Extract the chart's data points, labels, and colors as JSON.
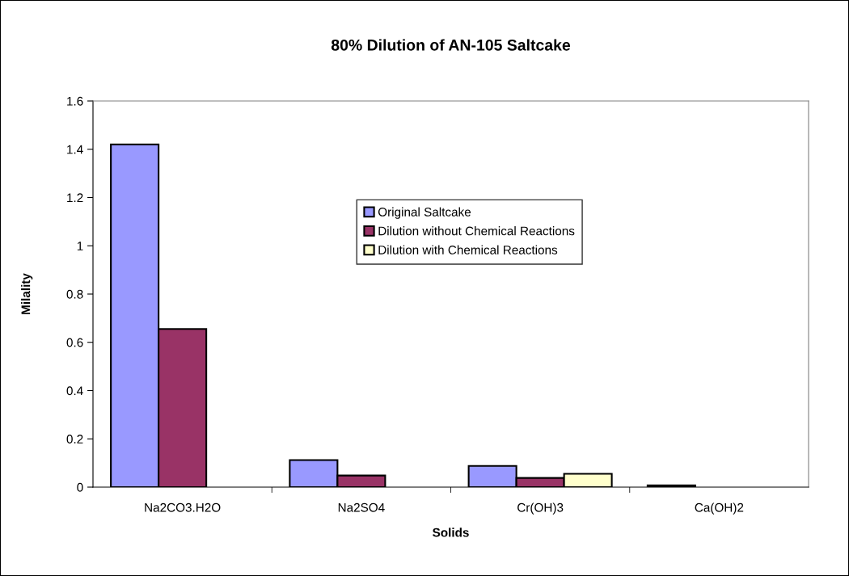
{
  "chart_data": {
    "type": "bar",
    "title": "80% Dilution of AN-105 Saltcake",
    "xlabel": "Solids",
    "ylabel": "Milality",
    "categories": [
      "Na2CO3.H2O",
      "Na2SO4",
      "Cr(OH)3",
      "Ca(OH)2"
    ],
    "series": [
      {
        "name": "Original Saltcake",
        "color": "#9999ff",
        "values": [
          1.42,
          0.112,
          0.088,
          0.007
        ]
      },
      {
        "name": "Dilution without Chemical Reactions",
        "color": "#993366",
        "values": [
          0.655,
          0.048,
          0.038,
          null
        ]
      },
      {
        "name": "Dilution with Chemical Reactions",
        "color": "#ffffcc",
        "values": [
          null,
          null,
          0.055,
          null
        ]
      }
    ],
    "ylim": [
      0,
      1.6
    ],
    "yticks": [
      0,
      0.2,
      0.4,
      0.6,
      0.8,
      1,
      1.2,
      1.4,
      1.6
    ],
    "legend": "top right",
    "grid": false
  }
}
